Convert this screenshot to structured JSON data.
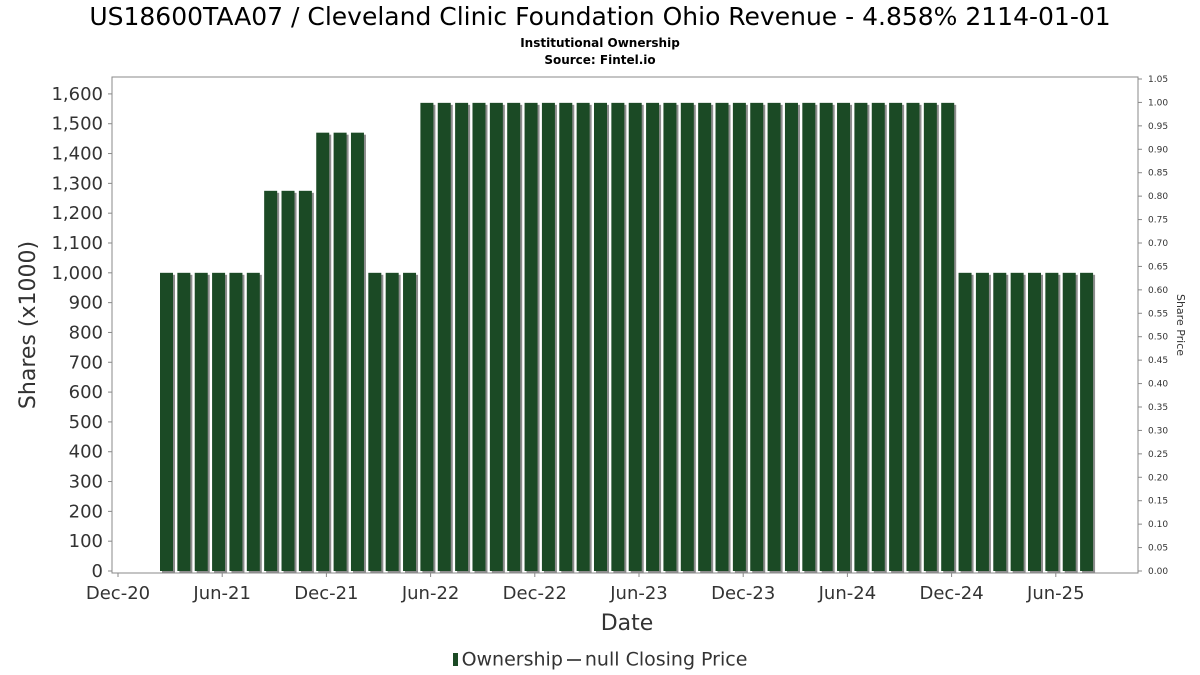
{
  "chart_data": {
    "type": "bar",
    "title": "US18600TAA07 / Cleveland Clinic Foundation Ohio Revenue - 4.858% 2114-01-01",
    "subtitle": "Institutional Ownership",
    "source": "Source: Fintel.io",
    "xlabel": "Date",
    "ylabel": "Shares (x1000)",
    "y2label": "Share Price",
    "ylim": [
      0,
      1650
    ],
    "y2lim": [
      0,
      1.05
    ],
    "yticks": [
      "0",
      "100",
      "200",
      "300",
      "400",
      "500",
      "600",
      "700",
      "800",
      "900",
      "1,000",
      "1,100",
      "1,200",
      "1,300",
      "1,400",
      "1,500",
      "1,600"
    ],
    "y2ticks": [
      "0.00",
      "0.05",
      "0.10",
      "0.15",
      "0.20",
      "0.25",
      "0.30",
      "0.35",
      "0.40",
      "0.45",
      "0.50",
      "0.55",
      "0.60",
      "0.65",
      "0.70",
      "0.75",
      "0.80",
      "0.85",
      "0.90",
      "0.95",
      "1.00",
      "1.05"
    ],
    "xticks": [
      "Dec-20",
      "Jun-21",
      "Dec-21",
      "Jun-22",
      "Dec-22",
      "Jun-23",
      "Dec-23",
      "Jun-24",
      "Dec-24",
      "Jun-25"
    ],
    "grid": false,
    "legend_position": "bottom",
    "series": [
      {
        "name": "Ownership",
        "color": "#1b4a25",
        "values": [
          1000,
          1000,
          1000,
          1000,
          1000,
          1000,
          1275,
          1275,
          1275,
          1470,
          1470,
          1470,
          1000,
          1000,
          1000,
          1570,
          1570,
          1570,
          1570,
          1570,
          1570,
          1570,
          1570,
          1570,
          1570,
          1570,
          1570,
          1570,
          1570,
          1570,
          1570,
          1570,
          1570,
          1570,
          1570,
          1570,
          1570,
          1570,
          1570,
          1570,
          1570,
          1570,
          1570,
          1570,
          1570,
          1570,
          1000,
          1000,
          1000,
          1000,
          1000,
          1000,
          1000,
          1000
        ]
      },
      {
        "name": "null Closing Price",
        "color": "#555555",
        "values": []
      }
    ]
  }
}
